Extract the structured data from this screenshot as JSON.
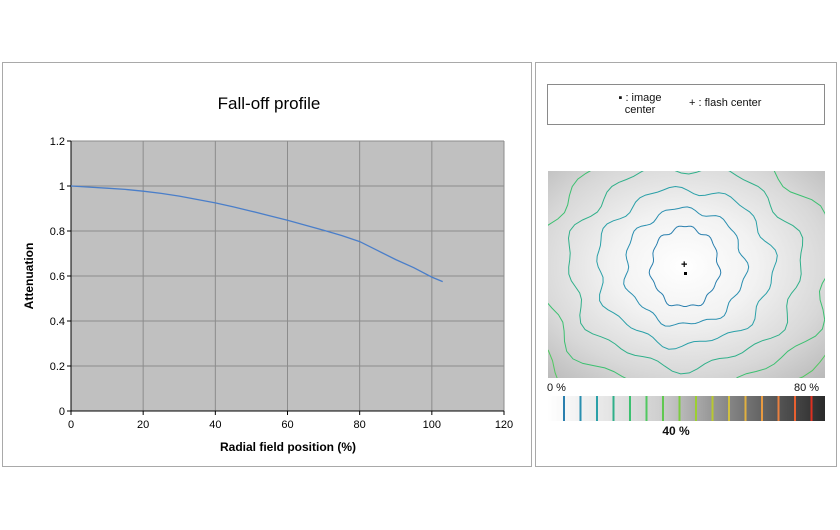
{
  "chart_data": {
    "type": "line",
    "title": "Fall-off profile",
    "xlabel": "Radial field position (%)",
    "ylabel": "Attenuation",
    "xlim": [
      0,
      120
    ],
    "ylim": [
      0,
      1.2
    ],
    "xticks": [
      "0",
      "20",
      "40",
      "60",
      "80",
      "100",
      "120"
    ],
    "yticks": [
      "0",
      "0.2",
      "0.4",
      "0.6",
      "0.8",
      "1",
      "1.2"
    ],
    "grid": true,
    "series": [
      {
        "color": "#4a7ec9",
        "x": [
          0,
          5,
          10,
          15,
          20,
          25,
          30,
          35,
          40,
          45,
          50,
          55,
          60,
          65,
          70,
          75,
          80,
          85,
          90,
          95,
          100,
          103
        ],
        "y": [
          1.0,
          0.995,
          0.99,
          0.985,
          0.977,
          0.967,
          0.955,
          0.94,
          0.925,
          0.907,
          0.888,
          0.868,
          0.848,
          0.826,
          0.803,
          0.78,
          0.753,
          0.713,
          0.673,
          0.637,
          0.595,
          0.575
        ]
      }
    ],
    "plot_bg": "#c0c0c0"
  },
  "legend": {
    "image_center": "▪ : image center",
    "flash_center": "+ : flash center"
  },
  "scale": {
    "min_label": "0 %",
    "max_label": "80 %",
    "mid_label": "40 %"
  }
}
